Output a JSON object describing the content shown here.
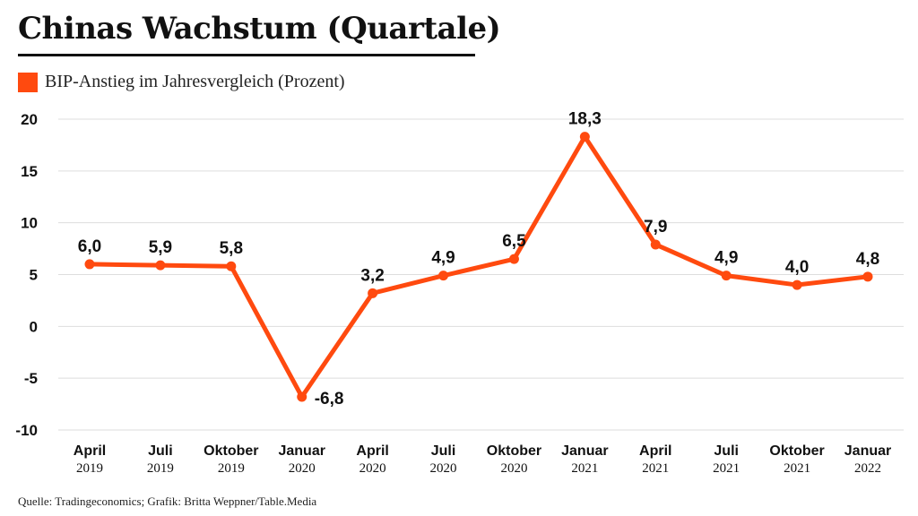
{
  "title": "Chinas Wachstum (Quartale)",
  "source": "Quelle: Tradingeconomics; Grafik: Britta Weppner/Table.Media",
  "colors": {
    "series": "#ff4a0f",
    "grid": "#dddddd",
    "text": "#111111"
  },
  "chart_data": {
    "type": "line",
    "categories": [
      {
        "month": "April",
        "year": "2019"
      },
      {
        "month": "Juli",
        "year": "2019"
      },
      {
        "month": "Oktober",
        "year": "2019"
      },
      {
        "month": "Januar",
        "year": "2020"
      },
      {
        "month": "April",
        "year": "2020"
      },
      {
        "month": "Juli",
        "year": "2020"
      },
      {
        "month": "Oktober",
        "year": "2020"
      },
      {
        "month": "Januar",
        "year": "2021"
      },
      {
        "month": "April",
        "year": "2021"
      },
      {
        "month": "Juli",
        "year": "2021"
      },
      {
        "month": "Oktober",
        "year": "2021"
      },
      {
        "month": "Januar",
        "year": "2022"
      }
    ],
    "series": [
      {
        "name": "BIP-Anstieg im Jahresvergleich (Prozent)",
        "values": [
          6.0,
          5.9,
          5.8,
          -6.8,
          3.2,
          4.9,
          6.5,
          18.3,
          7.9,
          4.9,
          4.0,
          4.8
        ],
        "labels": [
          "6,0",
          "5,9",
          "5,8",
          "-6,8",
          "3,2",
          "4,9",
          "6,5",
          "18,3",
          "7,9",
          "4,9",
          "4,0",
          "4,8"
        ]
      }
    ],
    "yticks": [
      "20",
      "15",
      "10",
      "5",
      "0",
      "-5",
      "-10"
    ],
    "ylim": [
      -10,
      20
    ],
    "grid": true,
    "legend_position": "top-left",
    "title": "Chinas Wachstum (Quartale)"
  }
}
